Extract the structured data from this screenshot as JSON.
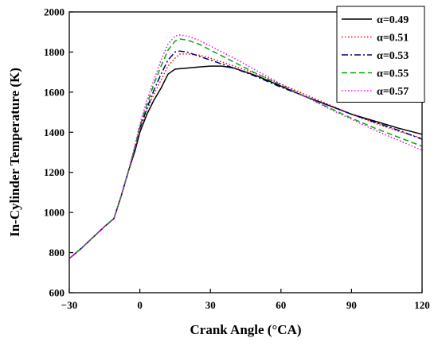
{
  "chart_data": {
    "type": "line",
    "title": "",
    "xlabel": "Crank Angle (°CA)",
    "ylabel": "In-Cylinder Temperature (K)",
    "xlim": [
      -30,
      120
    ],
    "ylim": [
      600,
      2000
    ],
    "xticks": [
      -30,
      0,
      30,
      60,
      90,
      120
    ],
    "xtick_labels": [
      "−30",
      "0",
      "30",
      "60",
      "90",
      "120"
    ],
    "yticks": [
      600,
      800,
      1000,
      1200,
      1400,
      1600,
      1800,
      2000
    ],
    "grid": false,
    "legend_position": "top-right",
    "series": [
      {
        "name": "α=0.49",
        "color": "#000000",
        "dash": "solid",
        "points": [
          [
            -30,
            770
          ],
          [
            -25,
            820
          ],
          [
            -20,
            875
          ],
          [
            -15,
            930
          ],
          [
            -11,
            970
          ],
          [
            -8,
            1080
          ],
          [
            -5,
            1200
          ],
          [
            -2,
            1310
          ],
          [
            0,
            1400
          ],
          [
            3,
            1490
          ],
          [
            6,
            1560
          ],
          [
            9,
            1620
          ],
          [
            12,
            1690
          ],
          [
            15,
            1715
          ],
          [
            20,
            1720
          ],
          [
            25,
            1725
          ],
          [
            30,
            1730
          ],
          [
            35,
            1730
          ],
          [
            40,
            1720
          ],
          [
            45,
            1700
          ],
          [
            50,
            1680
          ],
          [
            60,
            1630
          ],
          [
            70,
            1580
          ],
          [
            80,
            1535
          ],
          [
            90,
            1490
          ],
          [
            100,
            1455
          ],
          [
            110,
            1420
          ],
          [
            120,
            1390
          ]
        ]
      },
      {
        "name": "α=0.51",
        "color": "#ff0000",
        "dash": "dotted",
        "points": [
          [
            -30,
            770
          ],
          [
            -25,
            820
          ],
          [
            -20,
            875
          ],
          [
            -15,
            930
          ],
          [
            -11,
            970
          ],
          [
            -8,
            1080
          ],
          [
            -5,
            1200
          ],
          [
            -2,
            1320
          ],
          [
            0,
            1410
          ],
          [
            3,
            1510
          ],
          [
            6,
            1590
          ],
          [
            9,
            1660
          ],
          [
            12,
            1730
          ],
          [
            15,
            1770
          ],
          [
            17,
            1790
          ],
          [
            20,
            1790
          ],
          [
            25,
            1785
          ],
          [
            30,
            1770
          ],
          [
            40,
            1730
          ],
          [
            50,
            1690
          ],
          [
            60,
            1640
          ],
          [
            70,
            1590
          ],
          [
            80,
            1540
          ],
          [
            90,
            1490
          ],
          [
            100,
            1445
          ],
          [
            110,
            1405
          ],
          [
            120,
            1370
          ]
        ]
      },
      {
        "name": "α=0.53",
        "color": "#000080",
        "dash": "dashdot",
        "points": [
          [
            -30,
            770
          ],
          [
            -25,
            820
          ],
          [
            -20,
            875
          ],
          [
            -15,
            930
          ],
          [
            -11,
            970
          ],
          [
            -8,
            1080
          ],
          [
            -5,
            1200
          ],
          [
            -2,
            1320
          ],
          [
            0,
            1420
          ],
          [
            3,
            1520
          ],
          [
            6,
            1610
          ],
          [
            9,
            1690
          ],
          [
            12,
            1760
          ],
          [
            15,
            1800
          ],
          [
            17,
            1805
          ],
          [
            20,
            1800
          ],
          [
            25,
            1780
          ],
          [
            30,
            1760
          ],
          [
            40,
            1720
          ],
          [
            50,
            1675
          ],
          [
            60,
            1625
          ],
          [
            70,
            1580
          ],
          [
            80,
            1535
          ],
          [
            90,
            1490
          ],
          [
            100,
            1450
          ],
          [
            110,
            1410
          ],
          [
            120,
            1365
          ]
        ]
      },
      {
        "name": "α=0.55",
        "color": "#00aa00",
        "dash": "dashed",
        "points": [
          [
            -30,
            770
          ],
          [
            -25,
            820
          ],
          [
            -20,
            875
          ],
          [
            -15,
            930
          ],
          [
            -11,
            970
          ],
          [
            -8,
            1080
          ],
          [
            -5,
            1200
          ],
          [
            -2,
            1330
          ],
          [
            0,
            1430
          ],
          [
            3,
            1540
          ],
          [
            6,
            1640
          ],
          [
            9,
            1730
          ],
          [
            12,
            1810
          ],
          [
            15,
            1855
          ],
          [
            17,
            1865
          ],
          [
            20,
            1860
          ],
          [
            25,
            1840
          ],
          [
            30,
            1810
          ],
          [
            40,
            1750
          ],
          [
            50,
            1690
          ],
          [
            60,
            1635
          ],
          [
            70,
            1580
          ],
          [
            80,
            1525
          ],
          [
            90,
            1470
          ],
          [
            100,
            1420
          ],
          [
            110,
            1375
          ],
          [
            120,
            1330
          ]
        ]
      },
      {
        "name": "α=0.57",
        "color": "#ff00ff",
        "dash": "dotted",
        "points": [
          [
            -30,
            770
          ],
          [
            -25,
            820
          ],
          [
            -20,
            875
          ],
          [
            -15,
            930
          ],
          [
            -11,
            970
          ],
          [
            -8,
            1080
          ],
          [
            -5,
            1200
          ],
          [
            -2,
            1340
          ],
          [
            0,
            1440
          ],
          [
            3,
            1560
          ],
          [
            6,
            1660
          ],
          [
            9,
            1760
          ],
          [
            12,
            1840
          ],
          [
            15,
            1880
          ],
          [
            17,
            1885
          ],
          [
            20,
            1880
          ],
          [
            25,
            1860
          ],
          [
            30,
            1830
          ],
          [
            40,
            1770
          ],
          [
            50,
            1705
          ],
          [
            60,
            1640
          ],
          [
            70,
            1580
          ],
          [
            80,
            1520
          ],
          [
            90,
            1465
          ],
          [
            100,
            1410
          ],
          [
            110,
            1360
          ],
          [
            120,
            1310
          ]
        ]
      }
    ]
  }
}
